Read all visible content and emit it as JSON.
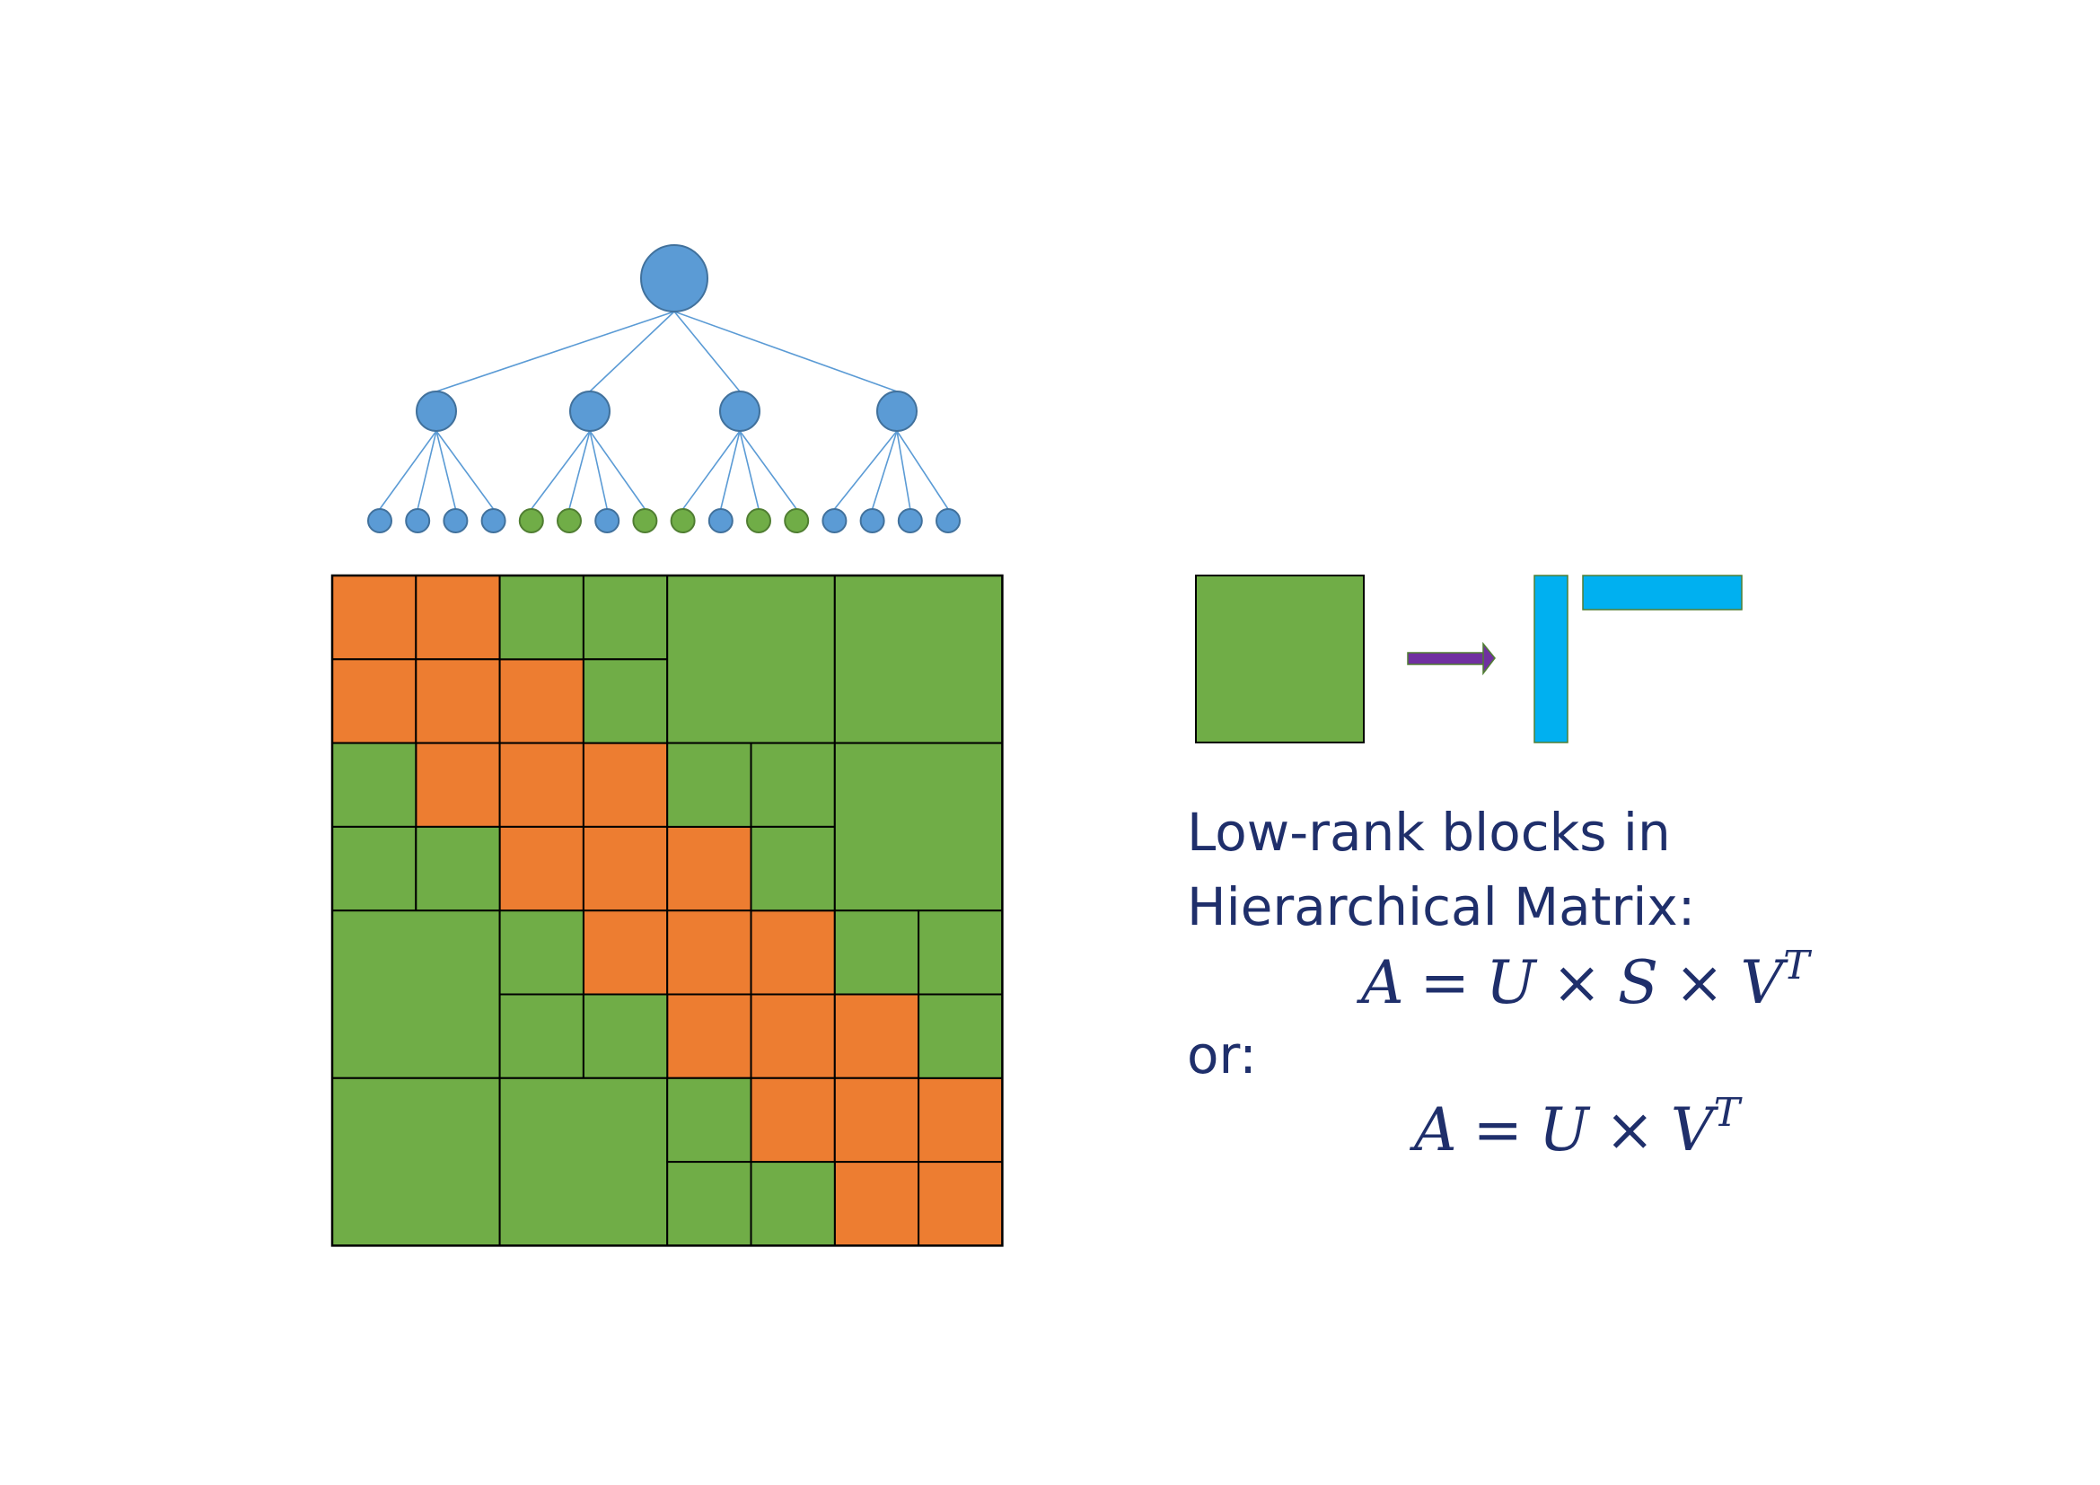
{
  "colors": {
    "tree_blue": "#5b9bd5",
    "tree_blue_stroke": "#41719c",
    "tree_green": "#70ad47",
    "tree_green_stroke": "#507e32",
    "edge": "#5b9bd5",
    "block_orange": "#ed7d31",
    "block_green": "#70ad47",
    "block_border": "#000000",
    "factor_cyan": "#00b0f0",
    "arrow_purple": "#7030a0",
    "text_navy": "#1f2f6b"
  },
  "tree": {
    "root_color": "blue",
    "level1_colors": [
      "blue",
      "blue",
      "blue",
      "blue"
    ],
    "leaf_colors": [
      "blue",
      "blue",
      "blue",
      "blue",
      "green",
      "green",
      "blue",
      "green",
      "green",
      "blue",
      "green",
      "green",
      "blue",
      "blue",
      "blue",
      "blue"
    ]
  },
  "matrix": {
    "grid_size": 8,
    "blocks": [
      {
        "r": 0,
        "c": 0,
        "size": 1,
        "kind": "dense"
      },
      {
        "r": 0,
        "c": 1,
        "size": 1,
        "kind": "dense"
      },
      {
        "r": 1,
        "c": 0,
        "size": 1,
        "kind": "dense"
      },
      {
        "r": 1,
        "c": 1,
        "size": 1,
        "kind": "dense"
      },
      {
        "r": 1,
        "c": 2,
        "size": 1,
        "kind": "dense"
      },
      {
        "r": 2,
        "c": 1,
        "size": 1,
        "kind": "dense"
      },
      {
        "r": 2,
        "c": 2,
        "size": 1,
        "kind": "dense"
      },
      {
        "r": 2,
        "c": 3,
        "size": 1,
        "kind": "dense"
      },
      {
        "r": 3,
        "c": 2,
        "size": 1,
        "kind": "dense"
      },
      {
        "r": 3,
        "c": 3,
        "size": 1,
        "kind": "dense"
      },
      {
        "r": 3,
        "c": 4,
        "size": 1,
        "kind": "dense"
      },
      {
        "r": 4,
        "c": 3,
        "size": 1,
        "kind": "dense"
      },
      {
        "r": 4,
        "c": 4,
        "size": 1,
        "kind": "dense"
      },
      {
        "r": 4,
        "c": 5,
        "size": 1,
        "kind": "dense"
      },
      {
        "r": 5,
        "c": 4,
        "size": 1,
        "kind": "dense"
      },
      {
        "r": 5,
        "c": 5,
        "size": 1,
        "kind": "dense"
      },
      {
        "r": 5,
        "c": 6,
        "size": 1,
        "kind": "dense"
      },
      {
        "r": 6,
        "c": 5,
        "size": 1,
        "kind": "dense"
      },
      {
        "r": 6,
        "c": 6,
        "size": 1,
        "kind": "dense"
      },
      {
        "r": 6,
        "c": 7,
        "size": 1,
        "kind": "dense"
      },
      {
        "r": 7,
        "c": 6,
        "size": 1,
        "kind": "dense"
      },
      {
        "r": 7,
        "c": 7,
        "size": 1,
        "kind": "dense"
      },
      {
        "r": 0,
        "c": 2,
        "size": 1,
        "kind": "low-rank"
      },
      {
        "r": 0,
        "c": 3,
        "size": 1,
        "kind": "low-rank"
      },
      {
        "r": 1,
        "c": 3,
        "size": 1,
        "kind": "low-rank"
      },
      {
        "r": 0,
        "c": 4,
        "size": 2,
        "kind": "low-rank"
      },
      {
        "r": 0,
        "c": 6,
        "size": 2,
        "kind": "low-rank"
      },
      {
        "r": 2,
        "c": 0,
        "size": 1,
        "kind": "low-rank"
      },
      {
        "r": 3,
        "c": 0,
        "size": 1,
        "kind": "low-rank"
      },
      {
        "r": 3,
        "c": 1,
        "size": 1,
        "kind": "low-rank"
      },
      {
        "r": 2,
        "c": 4,
        "size": 1,
        "kind": "low-rank"
      },
      {
        "r": 2,
        "c": 5,
        "size": 1,
        "kind": "low-rank"
      },
      {
        "r": 3,
        "c": 5,
        "size": 1,
        "kind": "low-rank"
      },
      {
        "r": 2,
        "c": 6,
        "size": 2,
        "kind": "low-rank"
      },
      {
        "r": 4,
        "c": 0,
        "size": 2,
        "kind": "low-rank"
      },
      {
        "r": 4,
        "c": 2,
        "size": 1,
        "kind": "low-rank"
      },
      {
        "r": 5,
        "c": 2,
        "size": 1,
        "kind": "low-rank"
      },
      {
        "r": 5,
        "c": 3,
        "size": 1,
        "kind": "low-rank"
      },
      {
        "r": 4,
        "c": 6,
        "size": 1,
        "kind": "low-rank"
      },
      {
        "r": 4,
        "c": 7,
        "size": 1,
        "kind": "low-rank"
      },
      {
        "r": 5,
        "c": 7,
        "size": 1,
        "kind": "low-rank"
      },
      {
        "r": 6,
        "c": 0,
        "size": 2,
        "kind": "low-rank"
      },
      {
        "r": 6,
        "c": 2,
        "size": 2,
        "kind": "low-rank"
      },
      {
        "r": 6,
        "c": 4,
        "size": 1,
        "kind": "low-rank"
      },
      {
        "r": 7,
        "c": 4,
        "size": 1,
        "kind": "low-rank"
      },
      {
        "r": 7,
        "c": 5,
        "size": 1,
        "kind": "low-rank"
      }
    ]
  },
  "caption": {
    "line1": "Low-rank blocks in",
    "line2": "Hierarchical Matrix:",
    "or_label": "or:"
  },
  "formula1": {
    "lhs": "A",
    "eq": "=",
    "u": "U",
    "times1": "×",
    "s": "S",
    "times2": "×",
    "v": "V",
    "sup": "T"
  },
  "formula2": {
    "lhs": "A",
    "eq": "=",
    "u": "U",
    "times1": "×",
    "v": "V",
    "sup": "T"
  }
}
